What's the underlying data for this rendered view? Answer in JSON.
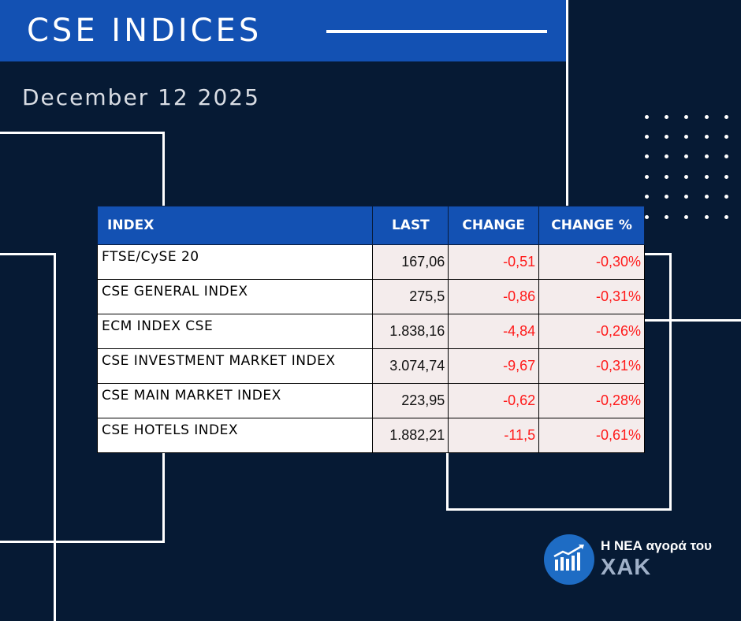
{
  "header": {
    "title": "CSE INDICES"
  },
  "date": "December 12 2025",
  "table": {
    "columns": [
      "INDEX",
      "LAST",
      "CHANGE",
      "CHANGE %"
    ],
    "rows": [
      {
        "name": "FTSE/CySE 20",
        "last": "167,06",
        "change": "-0,51",
        "change_pct": "-0,30%"
      },
      {
        "name": "CSE GENERAL INDEX",
        "last": "275,5",
        "change": "-0,86",
        "change_pct": "-0,31%"
      },
      {
        "name": "ECM INDEX CSE",
        "last": "1.838,16",
        "change": "-4,84",
        "change_pct": "-0,26%"
      },
      {
        "name": "CSE INVESTMENT MARKET INDEX",
        "last": "3.074,74",
        "change": "-9,67",
        "change_pct": "-0,31%"
      },
      {
        "name": "CSE MAIN MARKET INDEX",
        "last": "223,95",
        "change": "-0,62",
        "change_pct": "-0,28%"
      },
      {
        "name": "CSE HOTELS INDEX",
        "last": "1.882,21",
        "change": "-11,5",
        "change_pct": "-0,61%"
      }
    ]
  },
  "logo": {
    "line1": "Η ΝΕΑ αγορά του",
    "line2": "ΧΑΚ",
    "icon": "bar-chart-icon"
  },
  "colors": {
    "background": "#061a34",
    "accent": "#1351b3",
    "negative": "#ff1a1a"
  }
}
